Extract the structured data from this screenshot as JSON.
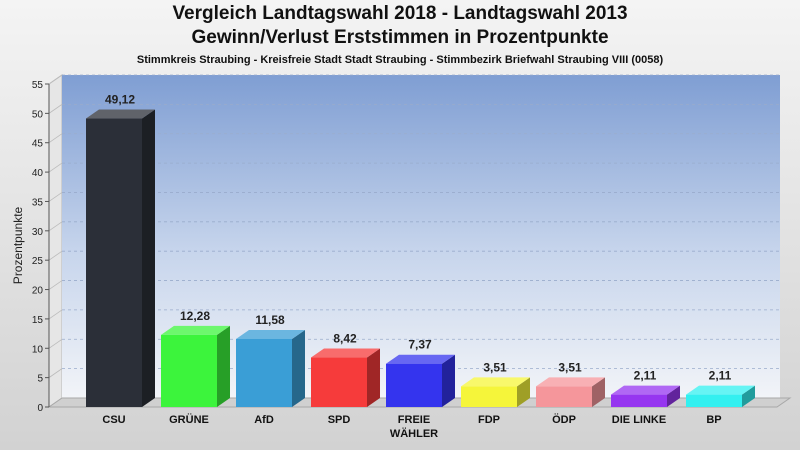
{
  "chart_data": {
    "type": "bar",
    "title": "Vergleich Landtagswahl 2018 - Landtagswahl 2013",
    "subtitle": "Gewinn/Verlust Erststimmen in Prozentpunkte",
    "caption": "Stimmkreis Straubing - Kreisfreie Stadt Stadt Straubing - Stimmbezirk Briefwahl Straubing VIII (0058)",
    "ylabel": "Prozentpunkte",
    "xlabel": "",
    "ylim": [
      0,
      55
    ],
    "yticks": [
      0,
      5,
      10,
      15,
      20,
      25,
      30,
      35,
      40,
      45,
      50,
      55
    ],
    "grid": true,
    "categories": [
      "CSU",
      "GRÜNE",
      "AfD",
      "SPD",
      "FREIE WÄHLER",
      "FDP",
      "ÖDP",
      "DIE LINKE",
      "BP"
    ],
    "category_lines": [
      [
        "CSU"
      ],
      [
        "GRÜNE"
      ],
      [
        "AfD"
      ],
      [
        "SPD"
      ],
      [
        "FREIE",
        "WÄHLER"
      ],
      [
        "FDP"
      ],
      [
        "ÖDP"
      ],
      [
        "DIE LINKE"
      ],
      [
        "BP"
      ]
    ],
    "values": [
      49.12,
      12.28,
      11.58,
      8.42,
      7.37,
      3.51,
      3.51,
      2.11,
      2.11
    ],
    "value_labels": [
      "49,12",
      "12,28",
      "11,58",
      "8,42",
      "7,37",
      "3,51",
      "3,51",
      "2,11",
      "2,11"
    ],
    "colors": [
      "#2b2f38",
      "#3cf43c",
      "#3a9ed6",
      "#f63b3b",
      "#3434ee",
      "#f5f53a",
      "#f5969b",
      "#9636f0",
      "#33f0f0"
    ]
  }
}
